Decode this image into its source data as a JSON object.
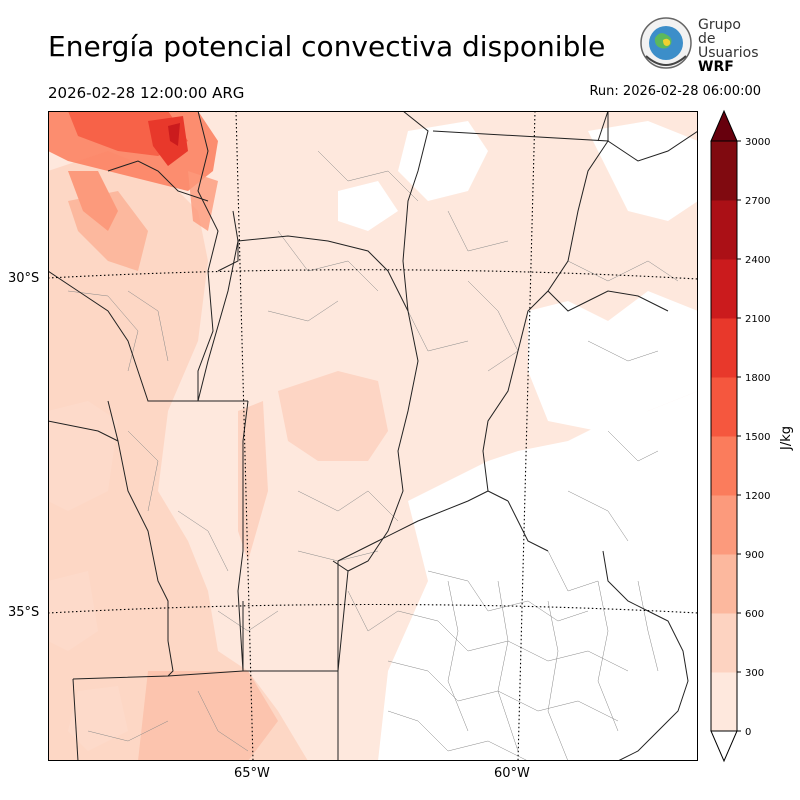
{
  "title": "Energía potencial convectiva disponible",
  "valid_time": "2026-02-28 12:00:00 ARG",
  "run_time": "Run: 2026-02-28 06:00:00",
  "logo": {
    "line1": "Grupo de",
    "line2": "Usuarios",
    "line3": "WRF"
  },
  "map": {
    "lat_labels": [
      "30°S",
      "35°S"
    ],
    "lon_labels": [
      "65°W",
      "60°W"
    ]
  },
  "colorbar": {
    "unit": "J/kg",
    "ticks": [
      "0",
      "300",
      "600",
      "900",
      "1200",
      "1500",
      "1800",
      "2100",
      "2400",
      "2700",
      "3000"
    ],
    "colors": [
      "#fee8dd",
      "#fdd3c1",
      "#fcb89e",
      "#fc9a7c",
      "#fb7c5c",
      "#f5573e",
      "#e8382b",
      "#cb1b1d",
      "#ab1016",
      "#800a10"
    ]
  }
}
